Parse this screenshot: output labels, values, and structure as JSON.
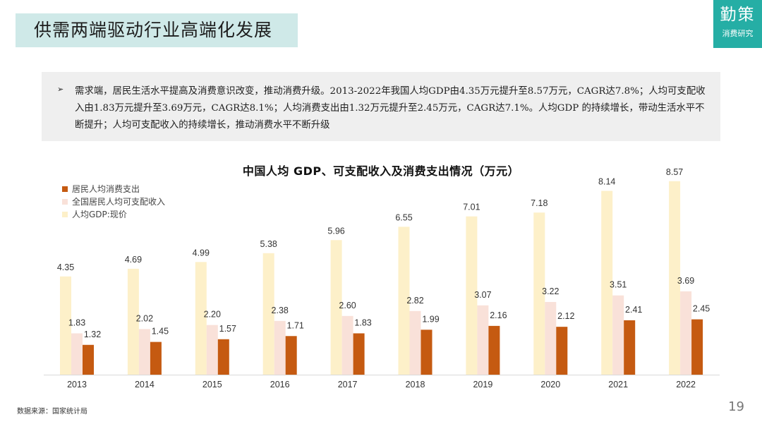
{
  "header": {
    "title": "供需两端驱动行业高端化发展",
    "logo_main": "勤策",
    "logo_sub": "消费研究"
  },
  "bullet": {
    "arrow": "➢",
    "text": "需求端，居民生活水平提高及消费意识改变，推动消费升级。2013-2022年我国人均GDP由4.35万元提升至8.57万元，CAGR达7.8%；人均可支配收入由1.83万元提升至3.69万元，CAGR达8.1%；人均消费支出由1.32万元提升至2.45万元，CAGR达7.1%。人均GDP 的持续增长，带动生活水平不断提升；人均可支配收入的持续增长，推动消费水平不断升级"
  },
  "footer": {
    "source": "数据来源：国家统计局",
    "page_number": "19"
  },
  "chart_data": {
    "type": "bar",
    "title": "中国人均 GDP、可支配收入及消费支出情况（万元）",
    "categories": [
      "2013",
      "2014",
      "2015",
      "2016",
      "2017",
      "2018",
      "2019",
      "2020",
      "2021",
      "2022"
    ],
    "series": [
      {
        "name": "人均GDP:现价",
        "color": "#fdf0c9",
        "values": [
          4.35,
          4.69,
          4.99,
          5.38,
          5.96,
          6.55,
          7.01,
          7.18,
          8.14,
          8.57
        ]
      },
      {
        "name": "全国居民人均可支配收入",
        "color": "#f9e1d9",
        "values": [
          1.83,
          2.02,
          2.2,
          2.38,
          2.6,
          2.82,
          3.07,
          3.22,
          3.51,
          3.69
        ]
      },
      {
        "name": "居民人均消费支出",
        "color": "#c55a11",
        "values": [
          1.32,
          1.45,
          1.57,
          1.71,
          1.83,
          1.99,
          2.16,
          2.12,
          2.41,
          2.45
        ]
      }
    ],
    "legend_order": [
      2,
      1,
      0
    ],
    "ylim": [
      0,
      9
    ],
    "legend_position": "top-left",
    "xlabel": "",
    "ylabel": ""
  }
}
